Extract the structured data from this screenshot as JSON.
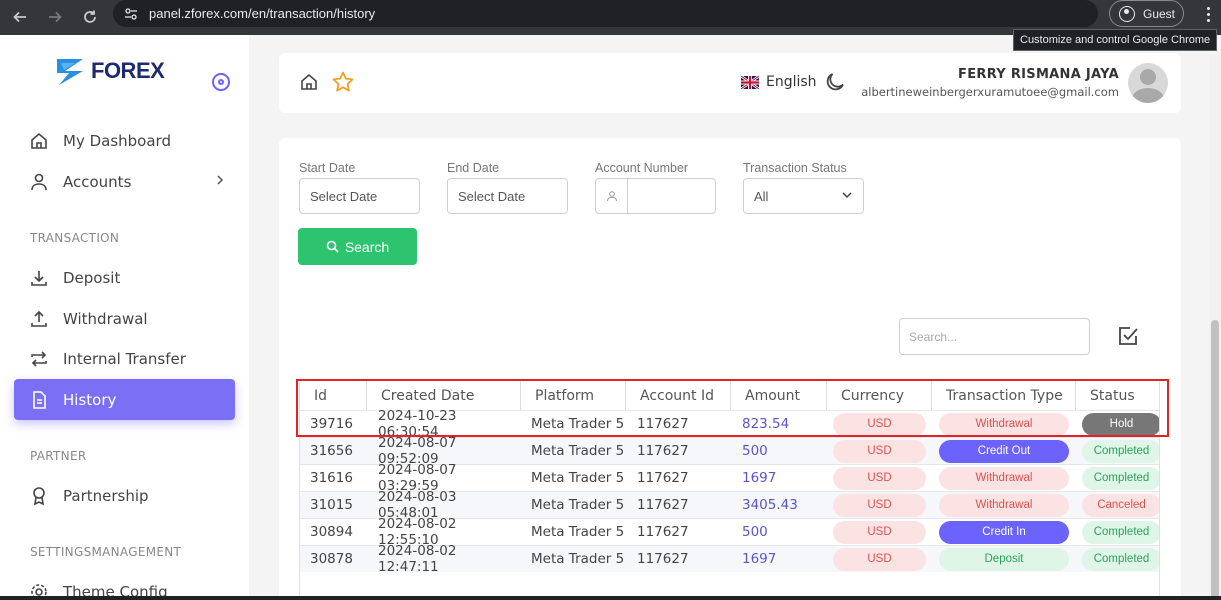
{
  "browser": {
    "url": "panel.zforex.com/en/transaction/history",
    "profile_label": "Guest",
    "tooltip": "Customize and control Google Chrome"
  },
  "brand": {
    "name": "FOREX",
    "accent": "#7a6ff5"
  },
  "sidebar": {
    "items": [
      {
        "label": "My Dashboard",
        "icon": "home-icon"
      },
      {
        "label": "Accounts",
        "icon": "user-icon"
      }
    ],
    "sections": [
      {
        "title": "TRANSACTION",
        "items": [
          {
            "label": "Deposit",
            "icon": "download-icon"
          },
          {
            "label": "Withdrawal",
            "icon": "upload-icon"
          },
          {
            "label": "Internal Transfer",
            "icon": "transfer-icon"
          },
          {
            "label": "History",
            "icon": "document-icon",
            "active": true
          }
        ]
      },
      {
        "title": "PARTNER",
        "items": [
          {
            "label": "Partnership",
            "icon": "award-icon"
          }
        ]
      },
      {
        "title": "SETTINGSMANAGEMENT",
        "items": [
          {
            "label": "Theme Config",
            "icon": "gear-icon"
          }
        ]
      }
    ]
  },
  "header": {
    "language": "English",
    "user_name": "FERRY RISMANA JAYA",
    "user_email": "albertineweinbergerxuramutoee@gmail.com"
  },
  "filters": {
    "start_date": {
      "label": "Start Date",
      "value": "Select Date"
    },
    "end_date": {
      "label": "End Date",
      "value": "Select Date"
    },
    "account_number": {
      "label": "Account Number",
      "value": ""
    },
    "transaction_status": {
      "label": "Transaction Status",
      "value": "All"
    },
    "search_button": "Search"
  },
  "table": {
    "search_placeholder": "Search...",
    "columns": [
      "Id",
      "Created Date",
      "Platform",
      "Account Id",
      "Amount",
      "Currency",
      "Transaction Type",
      "Status"
    ],
    "rows": [
      {
        "id": "39716",
        "created": "2024-10-23 06:30:54",
        "platform": "Meta Trader 5",
        "account": "117627",
        "amount": "823.54",
        "currency": "USD",
        "type": "Withdrawal",
        "status": "Hold"
      },
      {
        "id": "31656",
        "created": "2024-08-07 09:52:09",
        "platform": "Meta Trader 5",
        "account": "117627",
        "amount": "500",
        "currency": "USD",
        "type": "Credit Out",
        "status": "Completed"
      },
      {
        "id": "31616",
        "created": "2024-08-07 03:29:59",
        "platform": "Meta Trader 5",
        "account": "117627",
        "amount": "1697",
        "currency": "USD",
        "type": "Withdrawal",
        "status": "Completed"
      },
      {
        "id": "31015",
        "created": "2024-08-03 05:48:01",
        "platform": "Meta Trader 5",
        "account": "117627",
        "amount": "3405.43",
        "currency": "USD",
        "type": "Withdrawal",
        "status": "Canceled"
      },
      {
        "id": "30894",
        "created": "2024-08-02 12:55:10",
        "platform": "Meta Trader 5",
        "account": "117627",
        "amount": "500",
        "currency": "USD",
        "type": "Credit In",
        "status": "Completed"
      },
      {
        "id": "30878",
        "created": "2024-08-02 12:47:11",
        "platform": "Meta Trader 5",
        "account": "117627",
        "amount": "1697",
        "currency": "USD",
        "type": "Deposit",
        "status": "Completed"
      }
    ]
  }
}
